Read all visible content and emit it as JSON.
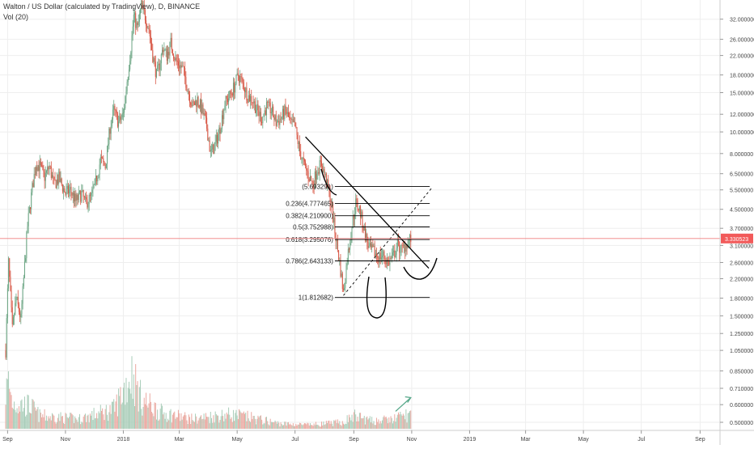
{
  "header": {
    "title": "Walton / US Dollar (calculated by TradingView), D, BINANCE",
    "volume_label": "Vol (20)"
  },
  "colors": {
    "up": "#6ba583",
    "down": "#d75442",
    "volume_up": "#a9cdb9",
    "volume_down": "#eaa8a0",
    "price_line": "#f08080",
    "price_badge": "#f25a5a",
    "drawing": "#000000",
    "arrow": "#57a88a",
    "grid": "#eeeeee",
    "axis_text": "#444444"
  },
  "chart_data": {
    "type": "candlestick",
    "title": "Walton / US Dollar (calculated by TradingView), D, BINANCE",
    "y_scale": "log",
    "ylim": [
      0.46,
      39.0
    ],
    "x_range": [
      "2017-08-24",
      "2019-09-22"
    ],
    "grid": true,
    "x_ticks": [
      {
        "label": "Sep",
        "date": "2017-09-01"
      },
      {
        "label": "Nov",
        "date": "2017-11-01"
      },
      {
        "label": "2018",
        "date": "2018-01-01"
      },
      {
        "label": "Mar",
        "date": "2018-03-01"
      },
      {
        "label": "May",
        "date": "2018-05-01"
      },
      {
        "label": "Jul",
        "date": "2018-07-01"
      },
      {
        "label": "Sep",
        "date": "2018-09-01"
      },
      {
        "label": "Nov",
        "date": "2018-11-01"
      },
      {
        "label": "2019",
        "date": "2019-01-01"
      },
      {
        "label": "Mar",
        "date": "2019-03-01"
      },
      {
        "label": "May",
        "date": "2019-05-01"
      },
      {
        "label": "Jul",
        "date": "2019-07-01"
      },
      {
        "label": "Sep",
        "date": "2019-09-01"
      }
    ],
    "y_ticks": [
      {
        "label": "32.000000",
        "value": 32.0
      },
      {
        "label": "26.000000",
        "value": 26.0
      },
      {
        "label": "22.000000",
        "value": 22.0
      },
      {
        "label": "18.000000",
        "value": 18.0
      },
      {
        "label": "15.000000",
        "value": 15.0
      },
      {
        "label": "12.000000",
        "value": 12.0
      },
      {
        "label": "10.000000",
        "value": 10.0
      },
      {
        "label": "8.000000",
        "value": 8.0
      },
      {
        "label": "6.500000",
        "value": 6.5
      },
      {
        "label": "5.500000",
        "value": 5.5
      },
      {
        "label": "4.500000",
        "value": 4.5
      },
      {
        "label": "3.700000",
        "value": 3.7
      },
      {
        "label": "3.100000",
        "value": 3.1
      },
      {
        "label": "2.600000",
        "value": 2.6
      },
      {
        "label": "2.200000",
        "value": 2.2
      },
      {
        "label": "1.800000",
        "value": 1.8
      },
      {
        "label": "1.500000",
        "value": 1.5
      },
      {
        "label": "1.250000",
        "value": 1.25
      },
      {
        "label": "1.050000",
        "value": 1.05
      },
      {
        "label": "0.850000",
        "value": 0.85
      },
      {
        "label": "0.710000",
        "value": 0.71
      },
      {
        "label": "0.600000",
        "value": 0.6
      },
      {
        "label": "0.500000",
        "value": 0.5
      }
    ],
    "last_price": {
      "label": "3.330523",
      "value": 3.330523
    },
    "price_path": [
      [
        "2017-08-30",
        1.05
      ],
      [
        "2017-09-02",
        2.6
      ],
      [
        "2017-09-06",
        1.3
      ],
      [
        "2017-09-10",
        1.8
      ],
      [
        "2017-09-15",
        1.45
      ],
      [
        "2017-09-18",
        2.2
      ],
      [
        "2017-09-22",
        3.8
      ],
      [
        "2017-09-27",
        5.6
      ],
      [
        "2017-10-01",
        7.2
      ],
      [
        "2017-10-05",
        7.0
      ],
      [
        "2017-10-10",
        6.3
      ],
      [
        "2017-10-15",
        7.0
      ],
      [
        "2017-10-20",
        5.8
      ],
      [
        "2017-10-25",
        6.2
      ],
      [
        "2017-11-01",
        5.3
      ],
      [
        "2017-11-06",
        5.5
      ],
      [
        "2017-11-12",
        4.9
      ],
      [
        "2017-11-18",
        5.3
      ],
      [
        "2017-11-22",
        4.8
      ],
      [
        "2017-11-28",
        5.1
      ],
      [
        "2017-12-03",
        6.0
      ],
      [
        "2017-12-08",
        7.5
      ],
      [
        "2017-12-13",
        7.0
      ],
      [
        "2017-12-18",
        10.5
      ],
      [
        "2017-12-22",
        12.5
      ],
      [
        "2017-12-27",
        11.0
      ],
      [
        "2018-01-01",
        12.0
      ],
      [
        "2018-01-05",
        17.0
      ],
      [
        "2018-01-09",
        24.0
      ],
      [
        "2018-01-12",
        33.0
      ],
      [
        "2018-01-16",
        29.0
      ],
      [
        "2018-01-20",
        37.0
      ],
      [
        "2018-01-24",
        33.0
      ],
      [
        "2018-01-28",
        29.0
      ],
      [
        "2018-02-01",
        22.0
      ],
      [
        "2018-02-05",
        18.0
      ],
      [
        "2018-02-08",
        20.0
      ],
      [
        "2018-02-12",
        24.0
      ],
      [
        "2018-02-16",
        22.0
      ],
      [
        "2018-02-20",
        25.0
      ],
      [
        "2018-02-25",
        21.0
      ],
      [
        "2018-03-01",
        20.0
      ],
      [
        "2018-03-05",
        19.0
      ],
      [
        "2018-03-10",
        15.5
      ],
      [
        "2018-03-15",
        13.0
      ],
      [
        "2018-03-20",
        14.0
      ],
      [
        "2018-03-25",
        12.5
      ],
      [
        "2018-03-30",
        10.5
      ],
      [
        "2018-04-03",
        8.0
      ],
      [
        "2018-04-08",
        8.8
      ],
      [
        "2018-04-13",
        10.5
      ],
      [
        "2018-04-18",
        13.5
      ],
      [
        "2018-04-23",
        14.5
      ],
      [
        "2018-04-28",
        16.0
      ],
      [
        "2018-05-02",
        18.0
      ],
      [
        "2018-05-07",
        16.5
      ],
      [
        "2018-05-12",
        14.5
      ],
      [
        "2018-05-17",
        14.0
      ],
      [
        "2018-05-22",
        12.5
      ],
      [
        "2018-05-27",
        11.5
      ],
      [
        "2018-06-01",
        13.0
      ],
      [
        "2018-06-06",
        12.5
      ],
      [
        "2018-06-11",
        11.0
      ],
      [
        "2018-06-16",
        11.5
      ],
      [
        "2018-06-21",
        12.5
      ],
      [
        "2018-06-26",
        11.0
      ],
      [
        "2018-07-01",
        10.5
      ],
      [
        "2018-07-06",
        8.2
      ],
      [
        "2018-07-11",
        7.0
      ],
      [
        "2018-07-16",
        6.3
      ],
      [
        "2018-07-20",
        5.8
      ],
      [
        "2018-07-24",
        6.8
      ],
      [
        "2018-07-29",
        7.2
      ],
      [
        "2018-08-03",
        6.0
      ],
      [
        "2018-08-08",
        4.8
      ],
      [
        "2018-08-12",
        3.6
      ],
      [
        "2018-08-17",
        2.6
      ],
      [
        "2018-08-21",
        1.9
      ],
      [
        "2018-08-25",
        2.7
      ],
      [
        "2018-08-30",
        3.8
      ],
      [
        "2018-09-03",
        4.8
      ],
      [
        "2018-09-07",
        4.5
      ],
      [
        "2018-09-12",
        3.6
      ],
      [
        "2018-09-17",
        3.0
      ],
      [
        "2018-09-22",
        2.9
      ],
      [
        "2018-09-27",
        2.75
      ],
      [
        "2018-10-02",
        2.8
      ],
      [
        "2018-10-07",
        2.6
      ],
      [
        "2018-10-12",
        2.75
      ],
      [
        "2018-10-17",
        3.1
      ],
      [
        "2018-10-22",
        2.95
      ],
      [
        "2018-10-27",
        3.2
      ],
      [
        "2018-10-31",
        3.33
      ]
    ],
    "volume_peaks": [
      [
        "2017-08-30",
        0.55
      ],
      [
        "2017-09-02",
        0.72
      ],
      [
        "2017-09-06",
        0.4
      ],
      [
        "2017-09-25",
        0.35
      ],
      [
        "2017-10-05",
        0.2
      ],
      [
        "2017-11-15",
        0.15
      ],
      [
        "2017-12-22",
        0.3
      ],
      [
        "2018-01-10",
        0.85
      ],
      [
        "2018-01-20",
        0.45
      ],
      [
        "2018-02-10",
        0.25
      ],
      [
        "2018-03-15",
        0.15
      ],
      [
        "2018-04-20",
        0.22
      ],
      [
        "2018-05-05",
        0.2
      ],
      [
        "2018-06-15",
        0.08
      ],
      [
        "2018-07-15",
        0.06
      ],
      [
        "2018-08-20",
        0.1
      ],
      [
        "2018-09-01",
        0.2
      ],
      [
        "2018-09-20",
        0.12
      ],
      [
        "2018-10-10",
        0.14
      ],
      [
        "2018-10-28",
        0.22
      ]
    ],
    "annotations": {
      "fib_retracement": {
        "start_date": "2018-08-12",
        "end_date": "2018-11-20",
        "levels": [
          {
            "label": "(5.693291)",
            "value": 5.693291
          },
          {
            "label": "0.236(4.777465)",
            "value": 4.777465
          },
          {
            "label": "0.382(4.210900)",
            "value": 4.2109
          },
          {
            "label": "0.5(3.752988)",
            "value": 3.752988
          },
          {
            "label": "0.618(3.295076)",
            "value": 3.295076
          },
          {
            "label": "0.786(2.643133)",
            "value": 2.643133
          },
          {
            "label": "1(1.812682)",
            "value": 1.812682
          }
        ]
      },
      "downtrend_line": [
        [
          "2018-07-12",
          9.5
        ],
        [
          "2018-11-19",
          2.45
        ]
      ],
      "dashed_uptrend_line": [
        [
          "2018-08-21",
          1.85
        ],
        [
          "2018-11-22",
          5.6
        ]
      ],
      "green_arrow": [
        [
          "2018-10-15",
          0.56
        ],
        [
          "2018-10-31",
          0.645
        ]
      ]
    }
  }
}
